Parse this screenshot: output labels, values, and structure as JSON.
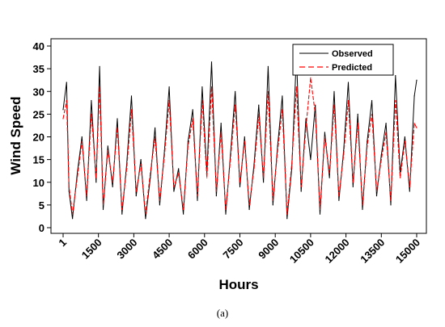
{
  "chart_data": {
    "type": "line",
    "xlabel": "Hours",
    "ylabel": "Wind Speed",
    "xlim": [
      1,
      15000
    ],
    "ylim": [
      0,
      40
    ],
    "x_ticks": [
      1,
      1500,
      3000,
      4500,
      6000,
      7500,
      9000,
      10500,
      12000,
      13500,
      15000
    ],
    "x_tick_labels": [
      "1",
      "1500",
      "3000",
      "4500",
      "6000",
      "7500",
      "9000",
      "10500",
      "12000",
      "13500",
      "15000"
    ],
    "y_ticks": [
      0,
      5,
      10,
      15,
      20,
      25,
      30,
      35,
      40
    ],
    "y_tick_labels": [
      "0",
      "5",
      "10",
      "15",
      "20",
      "25",
      "30",
      "35",
      "40"
    ],
    "legend_position": "top-right",
    "grid": false,
    "series": [
      {
        "name": "Observed",
        "color": "#000000",
        "style": "solid",
        "x": [
          1,
          150,
          250,
          400,
          600,
          800,
          1000,
          1200,
          1400,
          1550,
          1700,
          1900,
          2100,
          2300,
          2500,
          2700,
          2900,
          3100,
          3300,
          3500,
          3700,
          3900,
          4100,
          4300,
          4500,
          4700,
          4900,
          5100,
          5300,
          5500,
          5700,
          5900,
          6100,
          6300,
          6500,
          6700,
          6900,
          7100,
          7300,
          7500,
          7700,
          7900,
          8100,
          8300,
          8500,
          8700,
          8900,
          9100,
          9300,
          9500,
          9700,
          9900,
          10100,
          10300,
          10500,
          10700,
          10900,
          11100,
          11300,
          11500,
          11700,
          11900,
          12100,
          12300,
          12500,
          12700,
          12900,
          13100,
          13300,
          13500,
          13700,
          13900,
          14100,
          14300,
          14500,
          14700,
          14900,
          15000
        ],
        "y": [
          26,
          32,
          8,
          2,
          12,
          20,
          6,
          28,
          10,
          35.5,
          4,
          18,
          9,
          24,
          3,
          14,
          29,
          7,
          15,
          2,
          11,
          22,
          5,
          17,
          31,
          8,
          13,
          3,
          19,
          26,
          6,
          31,
          12,
          36.5,
          7,
          23,
          3,
          16,
          30,
          9,
          20,
          4,
          14,
          27,
          10,
          35.5,
          5,
          18,
          29,
          2,
          13,
          38,
          8,
          24,
          15,
          27,
          3,
          21,
          11,
          30,
          6,
          17,
          32,
          9,
          25,
          4,
          19,
          28,
          7,
          16,
          23,
          5,
          33.5,
          12,
          20,
          8,
          29,
          32.5
        ]
      },
      {
        "name": "Predicted",
        "color": "#ff0000",
        "style": "dashed",
        "x": [
          1,
          150,
          250,
          400,
          600,
          800,
          1000,
          1200,
          1400,
          1550,
          1700,
          1900,
          2100,
          2300,
          2500,
          2700,
          2900,
          3100,
          3300,
          3500,
          3700,
          3900,
          4100,
          4300,
          4500,
          4700,
          4900,
          5100,
          5300,
          5500,
          5700,
          5900,
          6100,
          6300,
          6500,
          6700,
          6900,
          7100,
          7300,
          7500,
          7700,
          7900,
          8100,
          8300,
          8500,
          8700,
          8900,
          9100,
          9300,
          9500,
          9700,
          9900,
          10100,
          10300,
          10500,
          10700,
          10900,
          11100,
          11300,
          11500,
          11700,
          11900,
          12100,
          12300,
          12500,
          12700,
          12900,
          13100,
          13300,
          13500,
          13700,
          13900,
          14100,
          14300,
          14500,
          14700,
          14900,
          15000
        ],
        "y": [
          24,
          28,
          9,
          3,
          11,
          19,
          7,
          25,
          11,
          31,
          5,
          17,
          10,
          22,
          4,
          13,
          26,
          8,
          14,
          3,
          12,
          20,
          6,
          16,
          28,
          9,
          12,
          4,
          18,
          24,
          7,
          28,
          11,
          31,
          8,
          21,
          4,
          15,
          27,
          10,
          19,
          5,
          13,
          25,
          11,
          30,
          6,
          17,
          26,
          3,
          14,
          31,
          9,
          22,
          33,
          25,
          4,
          20,
          12,
          27,
          7,
          16,
          28,
          10,
          23,
          5,
          18,
          25,
          8,
          15,
          21,
          6,
          28,
          11,
          19,
          9,
          23,
          22
        ]
      }
    ]
  },
  "caption": "(a)"
}
